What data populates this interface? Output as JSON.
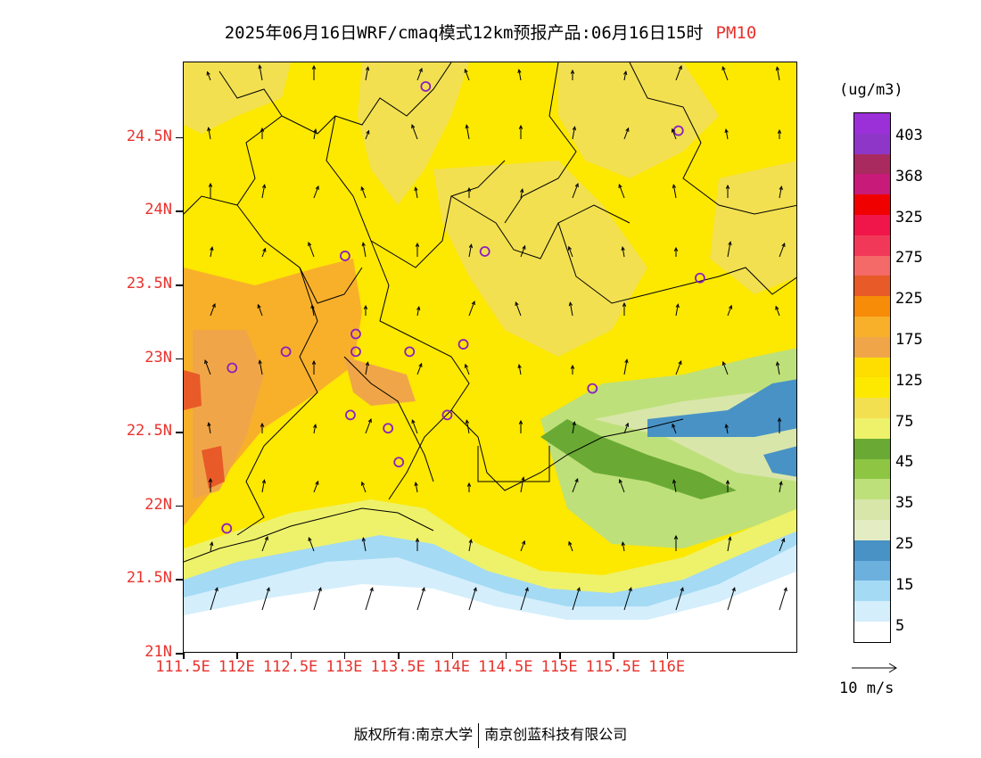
{
  "title": {
    "main": "2025年06月16日WRF/cmaq模式12km预报产品:06月16日15时",
    "species": "PM10"
  },
  "axes": {
    "y_labels": [
      "24.5N",
      "24N",
      "23.5N",
      "23N",
      "22.5N",
      "22N",
      "21.5N",
      "21N"
    ],
    "x_labels": [
      "111.5E",
      "112E",
      "112.5E",
      "113E",
      "113.5E",
      "114E",
      "114.5E",
      "115E",
      "115.5E",
      "116E"
    ]
  },
  "legend": {
    "unit": "(ug/m3)",
    "labels": [
      "403",
      "368",
      "325",
      "275",
      "225",
      "175",
      "125",
      "75",
      "45",
      "35",
      "25",
      "15",
      "5"
    ],
    "colors": [
      "#9b30d8",
      "#8e36c8",
      "#a82a5e",
      "#c81a78",
      "#f10000",
      "#f0164a",
      "#f23858",
      "#f46a68",
      "#e85a28",
      "#f68c08",
      "#f8b02a",
      "#f0a648",
      "#fdde00",
      "#fde800",
      "#f2e050",
      "#eef26a",
      "#6aaa34",
      "#8ec644",
      "#bee07a",
      "#d8e6aa",
      "#e4ecc4",
      "#4892c6",
      "#6cb0de",
      "#a4daf4",
      "#d4eefc",
      "#ffffff"
    ]
  },
  "wind_reference": {
    "label": "10 m/s"
  },
  "stations": [
    {
      "lon": 113.75,
      "lat": 24.85
    },
    {
      "lon": 116.1,
      "lat": 24.55
    },
    {
      "lon": 113.0,
      "lat": 23.7
    },
    {
      "lon": 114.3,
      "lat": 23.73
    },
    {
      "lon": 116.3,
      "lat": 23.55
    },
    {
      "lon": 112.45,
      "lat": 23.05
    },
    {
      "lon": 113.1,
      "lat": 23.17
    },
    {
      "lon": 113.1,
      "lat": 23.05
    },
    {
      "lon": 113.6,
      "lat": 23.05
    },
    {
      "lon": 114.1,
      "lat": 23.1
    },
    {
      "lon": 111.95,
      "lat": 22.94
    },
    {
      "lon": 113.05,
      "lat": 22.62
    },
    {
      "lon": 113.4,
      "lat": 22.53
    },
    {
      "lon": 113.95,
      "lat": 22.62
    },
    {
      "lon": 113.5,
      "lat": 22.3
    },
    {
      "lon": 115.3,
      "lat": 22.8
    },
    {
      "lon": 111.9,
      "lat": 21.85
    }
  ],
  "footer": {
    "left": "版权所有:南京大学",
    "right": "南京创蓝科技有限公司"
  }
}
